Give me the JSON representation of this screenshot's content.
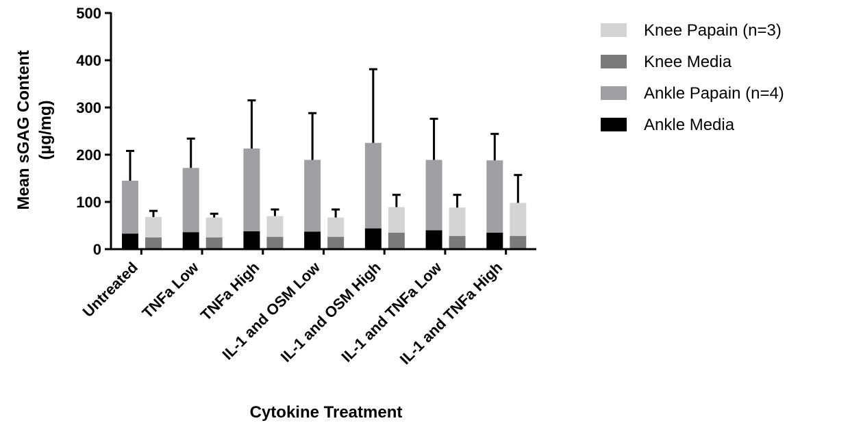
{
  "chart_data": {
    "type": "bar",
    "stacked": true,
    "categories": [
      "Untreated",
      "TNFa Low",
      "TNFa High",
      "IL-1 and OSM Low",
      "IL-1 and OSM High",
      "IL-1 and TNFa Low",
      "IL-1 and TNFa High"
    ],
    "series": [
      {
        "name": "Knee Papain (n=3)",
        "stack": "knee",
        "values": [
          43,
          42,
          44,
          41,
          54,
          60,
          70
        ],
        "color": "#d4d4d4"
      },
      {
        "name": "Knee Media",
        "stack": "knee",
        "values": [
          25,
          25,
          26,
          26,
          35,
          28,
          28
        ],
        "color": "#7a7a7a"
      },
      {
        "name": "Ankle Papain (n=4)",
        "stack": "ankle",
        "values": [
          112,
          136,
          175,
          152,
          181,
          149,
          153
        ],
        "color": "#a0a0a4"
      },
      {
        "name": "Ankle Media",
        "stack": "ankle",
        "values": [
          33,
          36,
          38,
          37,
          44,
          40,
          35
        ],
        "color": "#000000"
      }
    ],
    "error_bar_tops": {
      "ankle": [
        208,
        234,
        315,
        288,
        381,
        276,
        244
      ],
      "knee": [
        81,
        75,
        84,
        84,
        115,
        115,
        157
      ]
    },
    "xlabel": "Cytokine Treatment",
    "ylabel": "Mean sGAG Content",
    "ylabel_unit": "(µg/mg)",
    "ylim": [
      0,
      500
    ],
    "yticks": [
      0,
      100,
      200,
      300,
      400,
      500
    ],
    "grid": false,
    "legend_position": "right",
    "legend_order": [
      "Knee Papain (n=3)",
      "Knee Media",
      "Ankle Papain (n=4)",
      "Ankle Media"
    ]
  }
}
